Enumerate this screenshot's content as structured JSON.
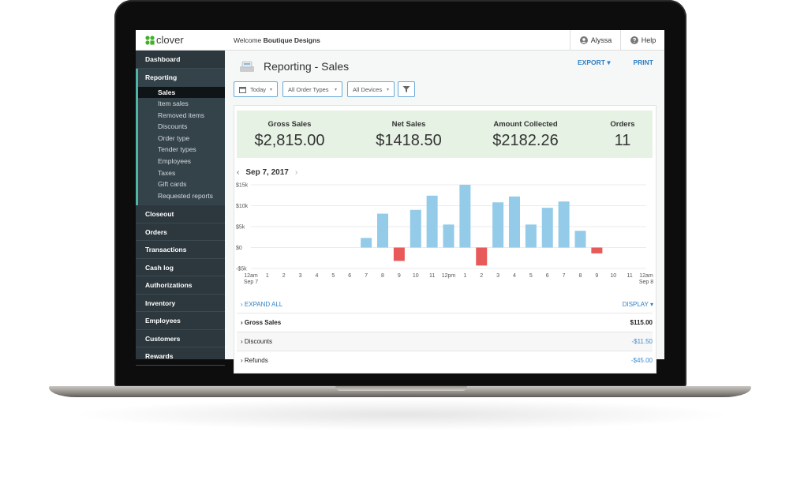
{
  "header": {
    "logo": "clover",
    "welcome": "Welcome",
    "business": "Boutique Designs",
    "user": "Alyssa",
    "help": "Help"
  },
  "sidebar": {
    "items": [
      {
        "label": "Dashboard"
      },
      {
        "label": "Reporting",
        "children": [
          "Sales",
          "Item sales",
          "Removed items",
          "Discounts",
          "Order type",
          "Tender types",
          "Employees",
          "Taxes",
          "Gift cards",
          "Requested reports"
        ]
      },
      {
        "label": "Closeout"
      },
      {
        "label": "Orders"
      },
      {
        "label": "Transactions"
      },
      {
        "label": "Cash log"
      },
      {
        "label": "Authorizations"
      },
      {
        "label": "Inventory"
      },
      {
        "label": "Employees"
      },
      {
        "label": "Customers"
      },
      {
        "label": "Rewards"
      }
    ]
  },
  "page": {
    "title": "Reporting - Sales",
    "actions": [
      "EXPORT",
      "PRINT"
    ],
    "filters": [
      "Today",
      "All Order Types",
      "All Devices"
    ]
  },
  "summary": [
    {
      "label": "Gross Sales",
      "value": "$2,815.00"
    },
    {
      "label": "Net Sales",
      "value": "$1418.50"
    },
    {
      "label": "Amount Collected",
      "value": "$2182.26"
    },
    {
      "label": "Orders",
      "value": "11"
    }
  ],
  "date": "Sep 7, 2017",
  "chart_data": {
    "type": "bar",
    "categories": [
      "12am",
      "1",
      "2",
      "3",
      "4",
      "5",
      "6",
      "7",
      "8",
      "9",
      "10",
      "11",
      "12pm",
      "1",
      "2",
      "3",
      "4",
      "5",
      "6",
      "7",
      "8",
      "9",
      "10",
      "11",
      "12am"
    ],
    "start_label": "Sep 7",
    "end_label": "Sep 8",
    "values": [
      null,
      null,
      null,
      null,
      null,
      null,
      null,
      2300,
      8100,
      -3200,
      9000,
      12400,
      5500,
      15000,
      -4300,
      10800,
      12200,
      5500,
      9500,
      11000,
      4000,
      -1400,
      null,
      null,
      null
    ],
    "color": "#93cbe8",
    "negative_color": "#e85a5a",
    "ylim": [
      -5000,
      15000
    ],
    "yticks": [
      {
        "value": 15000,
        "label": "$15k"
      },
      {
        "value": 10000,
        "label": "$10k"
      },
      {
        "value": 5000,
        "label": "$5k"
      },
      {
        "value": 0,
        "label": "$0"
      },
      {
        "value": -5000,
        "label": "-$5k"
      }
    ],
    "grid": true
  },
  "details": {
    "expand": "EXPAND ALL",
    "display": "DISPLAY",
    "rows": [
      [
        "Gross Sales",
        "$115.00"
      ],
      [
        "Discounts",
        "-$11.50"
      ],
      [
        "Refunds",
        "-$45.00"
      ]
    ]
  }
}
